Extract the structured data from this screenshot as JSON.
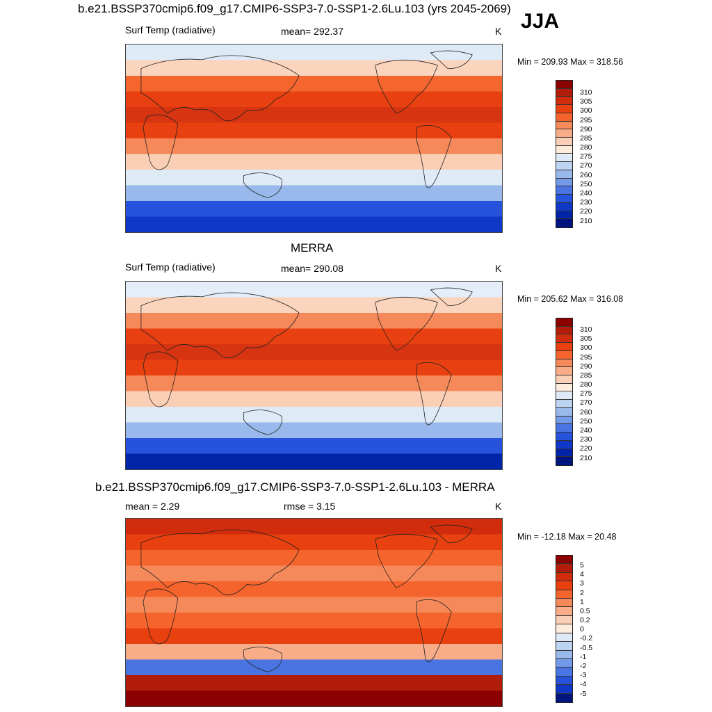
{
  "season": "JJA",
  "units": "K",
  "colorbars": {
    "temp": {
      "colors": [
        "#8b0000",
        "#b11c0b",
        "#d12d0d",
        "#e8400f",
        "#f4642c",
        "#f6895a",
        "#f8ac88",
        "#fbcfb6",
        "#fdebdb",
        "#dde9f7",
        "#bcd3f2",
        "#99b9ec",
        "#7399e8",
        "#4a74e2",
        "#2753dc",
        "#0f38c6",
        "#0024a8",
        "#00147f"
      ],
      "labels": [
        "310",
        "305",
        "300",
        "295",
        "290",
        "285",
        "280",
        "275",
        "270",
        "260",
        "250",
        "240",
        "230",
        "220",
        "210"
      ]
    },
    "diff": {
      "colors": [
        "#8b0000",
        "#b11c0b",
        "#d12d0d",
        "#e8400f",
        "#f4642c",
        "#f6895a",
        "#f8ac88",
        "#fbcfb6",
        "#fdebdb",
        "#dde9f7",
        "#bcd3f2",
        "#99b9ec",
        "#7399e8",
        "#4a74e2",
        "#2753dc",
        "#0f38c6",
        "#00147f"
      ],
      "labels": [
        "5",
        "4",
        "3",
        "2",
        "1",
        "0.5",
        "0.2",
        "0",
        "-0.2",
        "-0.5",
        "-1",
        "-2",
        "-3",
        "-4",
        "-5"
      ]
    }
  },
  "panels": [
    {
      "title": "b.e21.BSSP370cmip6.f09_g17.CMIP6-SSP3-7.0-SSP1-2.6Lu.103 (yrs 2045-2069)",
      "left_label": "Surf Temp (radiative)",
      "center_label": "mean= 292.37",
      "units": "K",
      "minmax": "Min = 209.93 Max = 318.56",
      "bands": [
        "#dfeaf7",
        "#fbd4bd",
        "#f4662e",
        "#e84010",
        "#d73411",
        "#e84010",
        "#f6895a",
        "#fbcfb6",
        "#dfeaf7",
        "#99b9ec",
        "#2753dc",
        "#0f38c6"
      ]
    },
    {
      "title": "MERRA",
      "left_label": "Surf Temp (radiative)",
      "center_label": "mean= 290.08",
      "units": "K",
      "minmax": "Min = 205.62 Max = 316.08",
      "bands": [
        "#e4edf8",
        "#fbd4bd",
        "#f6895a",
        "#e84010",
        "#d73411",
        "#e84010",
        "#f6895a",
        "#fbcfb6",
        "#dfeaf7",
        "#99b9ec",
        "#2753dc",
        "#0024a8"
      ]
    },
    {
      "title": "b.e21.BSSP370cmip6.f09_g17.CMIP6-SSP3-7.0-SSP1-2.6Lu.103 - MERRA",
      "left_label": "mean =   2.29",
      "center_label": "rmse =   3.15",
      "units": "K",
      "minmax": "Min = -12.18 Max =  20.48",
      "bands": [
        "#d12d0d",
        "#e8400f",
        "#f4642c",
        "#f6895a",
        "#f4642c",
        "#f6895a",
        "#f4642c",
        "#e8400f",
        "#f8ac88",
        "#4a74e2",
        "#b11c0b",
        "#8b0000"
      ]
    }
  ]
}
